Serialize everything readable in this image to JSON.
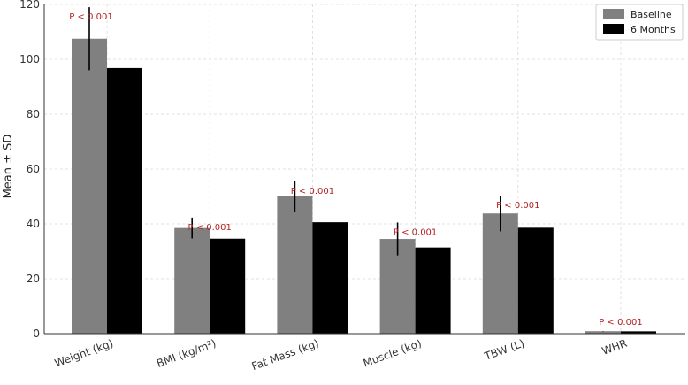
{
  "chart_data": {
    "type": "bar",
    "categories": [
      "Weight (kg)",
      "BMI (kg/m²)",
      "Fat Mass (kg)",
      "Muscle (kg)",
      "TBW (L)",
      "WHR"
    ],
    "series": [
      {
        "name": "Baseline",
        "values": [
          107.5,
          38.5,
          50.0,
          34.5,
          43.8,
          0.9
        ],
        "sd": [
          11.5,
          3.8,
          5.5,
          6.0,
          6.5,
          0.05
        ],
        "color": "#808080"
      },
      {
        "name": "6 Months",
        "values": [
          96.8,
          34.6,
          40.6,
          31.4,
          38.6,
          0.85
        ],
        "color": "#000000"
      }
    ],
    "annotations": [
      "P < 0.001",
      "P < 0.001",
      "P < 0.001",
      "P < 0.001",
      "P < 0.001",
      "P < 0.001"
    ],
    "ylabel": "Mean ± SD",
    "ylim": [
      0,
      120
    ],
    "yticks": [
      0,
      20,
      40,
      60,
      80,
      100,
      120
    ],
    "grid": true,
    "legend_position": "top-right"
  }
}
